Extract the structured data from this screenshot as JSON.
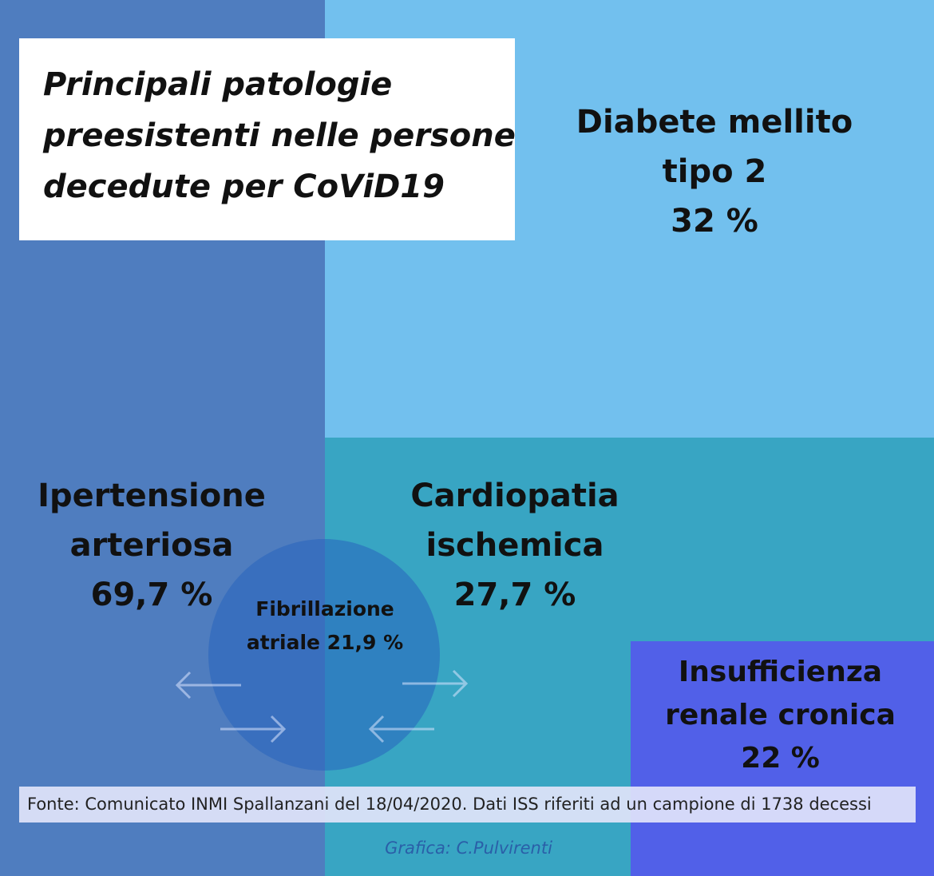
{
  "title": {
    "line1": "Principali patologie",
    "line2": "preesistenti nelle persone",
    "line3": "decedute per CoViD19"
  },
  "items": {
    "diabete": {
      "line1": "Diabete mellito",
      "line2": "tipo 2",
      "value": "32 %"
    },
    "ipertensione": {
      "line1": "Ipertensione",
      "line2": "arteriosa",
      "value": "69,7 %"
    },
    "cardiopatia": {
      "line1": "Cardiopatia",
      "line2": "ischemica",
      "value": "27,7  %"
    },
    "fibrillazione": {
      "line1": "Fibrillazione",
      "line2": "atriale 21,9 %"
    },
    "insufficienza": {
      "line1": "Insufficienza",
      "line2": "renale cronica",
      "value": "22 %"
    }
  },
  "footer": {
    "source": "Fonte: Comunicato INMI Spallanzani del 18/04/2020. Dati ISS riferiti ad un campione di 1738 decessi",
    "credit": "Grafica: C.Pulvirenti"
  },
  "colors": {
    "left_panel": "#4f7dbf",
    "top_right_panel": "#72c0ee",
    "middle_right_panel": "#38a5c3",
    "bottom_right_panel": "#5160e8",
    "circle": "#2864be"
  },
  "icons": [
    "arrow-left-icon",
    "arrow-right-icon",
    "arrow-right-icon",
    "arrow-left-icon"
  ]
}
